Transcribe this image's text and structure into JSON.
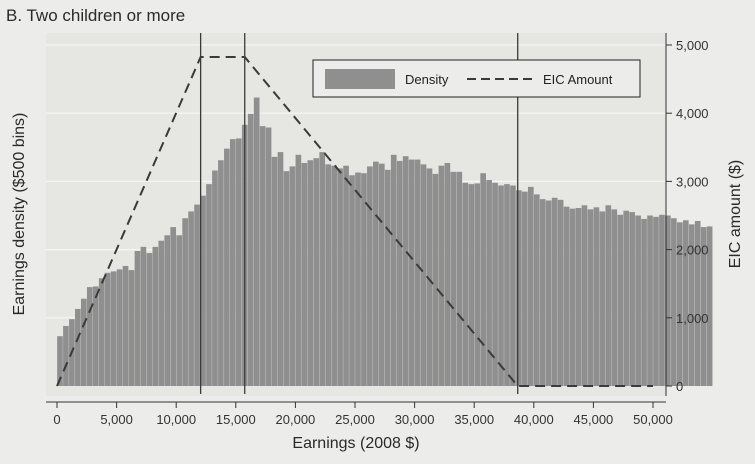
{
  "chart_data": {
    "type": "bar",
    "title": "B. Two children or more",
    "xlabel": "Earnings (2008 $)",
    "ylabel": "Earnings density ($500 bins)",
    "y2label": "EIC amount ($)",
    "xlim": [
      0,
      50000
    ],
    "y2lim": [
      0,
      5000
    ],
    "x_ticks": [
      "0",
      "5,000",
      "10,000",
      "15,000",
      "20,000",
      "25,000",
      "30,000",
      "35,000",
      "40,000",
      "45,000",
      "50,000"
    ],
    "y2_ticks": [
      "0",
      "1,000",
      "2,000",
      "3,000",
      "4,000",
      "5,000"
    ],
    "grid": true,
    "legend_position": "top-right",
    "reference_lines_x": [
      12050,
      15750,
      38650
    ],
    "series": [
      {
        "name": "Density",
        "kind": "bar",
        "bin_width": 500,
        "values": [
          730,
          880,
          980,
          1130,
          1280,
          1450,
          1460,
          1580,
          1660,
          1680,
          1710,
          1760,
          1700,
          1980,
          2040,
          1950,
          2040,
          2130,
          2210,
          2330,
          2210,
          2460,
          2560,
          2660,
          2790,
          2960,
          3160,
          3310,
          3480,
          3620,
          3630,
          3830,
          3990,
          4230,
          3810,
          3790,
          3360,
          3430,
          3150,
          3220,
          3390,
          3270,
          3310,
          3340,
          3430,
          3250,
          3230,
          3190,
          3230,
          3090,
          3130,
          3120,
          3220,
          3290,
          3260,
          3170,
          3390,
          3300,
          3370,
          3320,
          3320,
          3250,
          3190,
          3110,
          3230,
          3270,
          3140,
          3140,
          2980,
          2960,
          2970,
          3120,
          3020,
          2980,
          2940,
          2960,
          2940,
          2870,
          2850,
          2920,
          2810,
          2740,
          2720,
          2760,
          2730,
          2630,
          2600,
          2610,
          2650,
          2590,
          2620,
          2560,
          2650,
          2590,
          2510,
          2570,
          2550,
          2500,
          2450,
          2500,
          2480,
          2510,
          2500,
          2460,
          2400,
          2430,
          2370,
          2420,
          2330,
          2340
        ]
      },
      {
        "name": "EIC Amount",
        "kind": "line",
        "dash": true,
        "x": [
          0,
          12050,
          15750,
          38650,
          50000
        ],
        "y": [
          0,
          4824,
          4824,
          0,
          0
        ]
      }
    ]
  },
  "colors": {
    "bars": "#8f8f8f",
    "background": "#ececea",
    "line": "#3a3a3a"
  }
}
